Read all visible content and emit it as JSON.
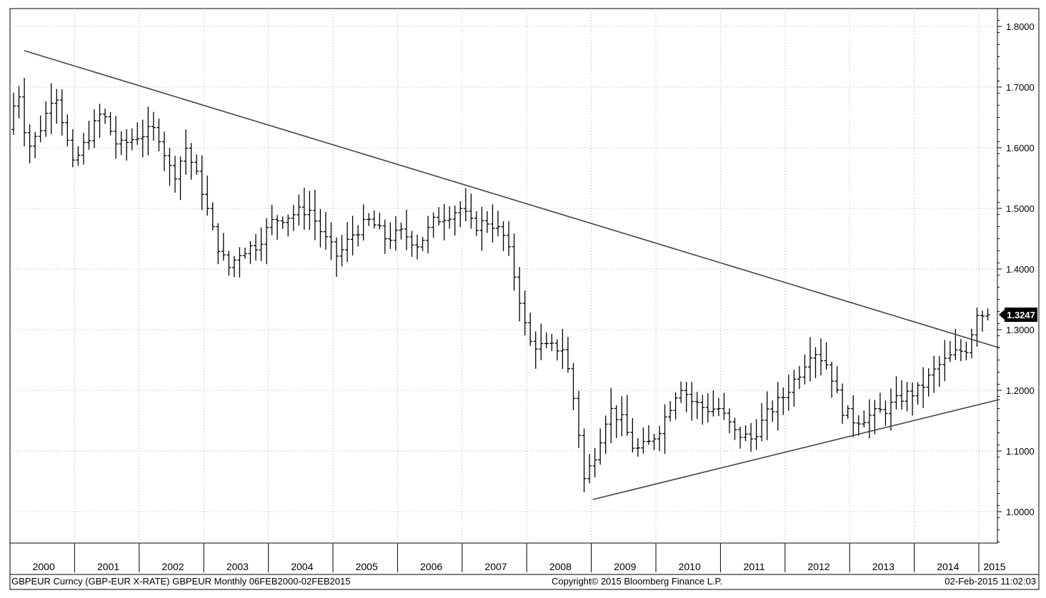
{
  "chart_data": {
    "type": "ohlc",
    "frequency": "monthly",
    "ylim": [
      0.95,
      1.83
    ],
    "xlim": [
      2000.0,
      2015.3
    ],
    "yticks": [
      "1.8000",
      "1.7000",
      "1.6000",
      "1.5000",
      "1.4000",
      "1.3000",
      "1.2000",
      "1.1000",
      "1.0000"
    ],
    "years": [
      "2000",
      "2001",
      "2002",
      "2003",
      "2004",
      "2005",
      "2006",
      "2007",
      "2008",
      "2009",
      "2010",
      "2011",
      "2012",
      "2013",
      "2014",
      "2015"
    ],
    "last_value": "1.3247",
    "anchors": [
      [
        2000.0,
        1.63
      ],
      [
        2000.15,
        1.7
      ],
      [
        2000.3,
        1.6
      ],
      [
        2000.45,
        1.62
      ],
      [
        2000.6,
        1.66
      ],
      [
        2000.72,
        1.7
      ],
      [
        2000.85,
        1.64
      ],
      [
        2001.0,
        1.57
      ],
      [
        2001.2,
        1.61
      ],
      [
        2001.45,
        1.66
      ],
      [
        2001.7,
        1.6
      ],
      [
        2002.0,
        1.62
      ],
      [
        2002.3,
        1.63
      ],
      [
        2002.55,
        1.55
      ],
      [
        2002.75,
        1.6
      ],
      [
        2003.0,
        1.53
      ],
      [
        2003.2,
        1.45
      ],
      [
        2003.4,
        1.4
      ],
      [
        2003.6,
        1.43
      ],
      [
        2003.85,
        1.44
      ],
      [
        2004.1,
        1.48
      ],
      [
        2004.4,
        1.49
      ],
      [
        2004.65,
        1.5
      ],
      [
        2004.9,
        1.45
      ],
      [
        2005.1,
        1.42
      ],
      [
        2005.35,
        1.46
      ],
      [
        2005.6,
        1.48
      ],
      [
        2005.85,
        1.45
      ],
      [
        2006.1,
        1.46
      ],
      [
        2006.35,
        1.44
      ],
      [
        2006.6,
        1.48
      ],
      [
        2006.8,
        1.49
      ],
      [
        2007.0,
        1.5
      ],
      [
        2007.2,
        1.47
      ],
      [
        2007.45,
        1.48
      ],
      [
        2007.7,
        1.45
      ],
      [
        2007.9,
        1.36
      ],
      [
        2008.05,
        1.28
      ],
      [
        2008.3,
        1.27
      ],
      [
        2008.6,
        1.27
      ],
      [
        2008.8,
        1.16
      ],
      [
        2008.92,
        1.05
      ],
      [
        2009.1,
        1.1
      ],
      [
        2009.3,
        1.17
      ],
      [
        2009.5,
        1.15
      ],
      [
        2009.7,
        1.1
      ],
      [
        2009.9,
        1.11
      ],
      [
        2010.1,
        1.14
      ],
      [
        2010.4,
        1.21
      ],
      [
        2010.6,
        1.18
      ],
      [
        2010.8,
        1.17
      ],
      [
        2011.0,
        1.17
      ],
      [
        2011.25,
        1.13
      ],
      [
        2011.5,
        1.12
      ],
      [
        2011.75,
        1.16
      ],
      [
        2012.0,
        1.19
      ],
      [
        2012.25,
        1.23
      ],
      [
        2012.45,
        1.27
      ],
      [
        2012.7,
        1.24
      ],
      [
        2012.9,
        1.17
      ],
      [
        2013.1,
        1.15
      ],
      [
        2013.4,
        1.16
      ],
      [
        2013.6,
        1.17
      ],
      [
        2013.85,
        1.19
      ],
      [
        2014.1,
        1.2
      ],
      [
        2014.4,
        1.24
      ],
      [
        2014.65,
        1.26
      ],
      [
        2014.85,
        1.27
      ],
      [
        2015.0,
        1.33
      ],
      [
        2015.1,
        1.3247
      ]
    ],
    "trendlines": [
      {
        "name": "resistance",
        "x": [
          2000.2,
          2015.3
        ],
        "y": [
          1.76,
          1.27
        ]
      },
      {
        "name": "support",
        "x": [
          2009.0,
          2015.3
        ],
        "y": [
          1.02,
          1.185
        ]
      }
    ]
  },
  "footer": {
    "left": "GBPEUR Curncy (GBP-EUR X-RATE) GBPEUR  Monthly 06FEB2000-02FEB2015",
    "center": "Copyright© 2015 Bloomberg Finance L.P.",
    "right": "02-Feb-2015 11:02:03"
  }
}
